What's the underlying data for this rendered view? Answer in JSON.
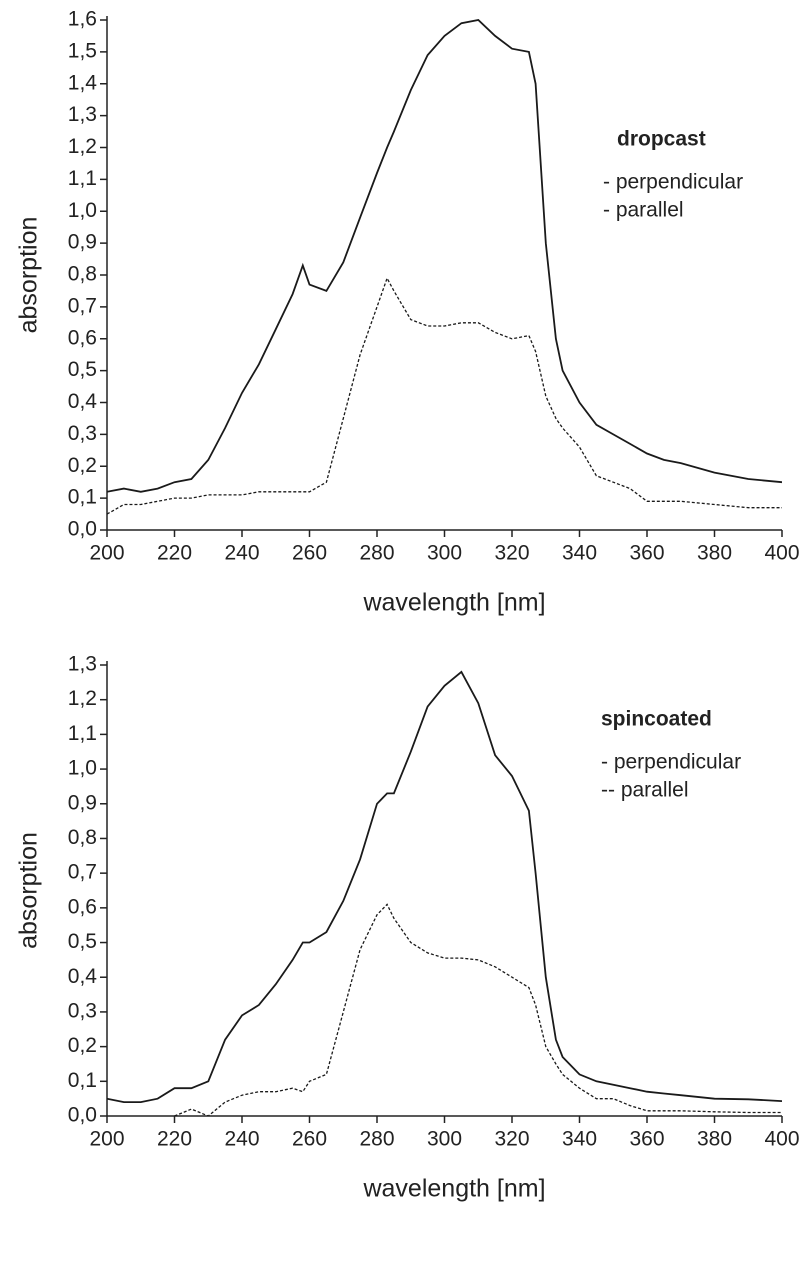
{
  "chart_data": [
    {
      "type": "line",
      "legend_title": "dropcast",
      "xlabel": "wavelength [nm]",
      "ylabel": "absorption",
      "x": [
        200,
        205,
        210,
        215,
        220,
        225,
        230,
        235,
        240,
        245,
        250,
        255,
        258,
        260,
        265,
        270,
        275,
        280,
        283,
        285,
        290,
        295,
        300,
        305,
        310,
        315,
        320,
        325,
        327,
        330,
        333,
        335,
        340,
        345,
        350,
        355,
        360,
        365,
        370,
        380,
        390,
        400
      ],
      "series": [
        {
          "name": "- perpendicular",
          "color": "#1a1a1a",
          "style": "solid",
          "values": [
            0.12,
            0.13,
            0.12,
            0.13,
            0.15,
            0.16,
            0.22,
            0.32,
            0.43,
            0.52,
            0.63,
            0.74,
            0.83,
            0.77,
            0.75,
            0.84,
            0.98,
            1.12,
            1.2,
            1.25,
            1.38,
            1.49,
            1.55,
            1.59,
            1.6,
            1.55,
            1.51,
            1.5,
            1.4,
            0.9,
            0.6,
            0.5,
            0.4,
            0.33,
            0.3,
            0.27,
            0.24,
            0.22,
            0.21,
            0.18,
            0.16,
            0.15
          ]
        },
        {
          "name": "- parallel",
          "color": "#1a1a1a",
          "style": "dashed",
          "values": [
            0.05,
            0.08,
            0.08,
            0.09,
            0.1,
            0.1,
            0.11,
            0.11,
            0.11,
            0.12,
            0.12,
            0.12,
            0.12,
            0.12,
            0.15,
            0.35,
            0.55,
            0.7,
            0.79,
            0.75,
            0.66,
            0.64,
            0.64,
            0.65,
            0.65,
            0.62,
            0.6,
            0.61,
            0.56,
            0.42,
            0.35,
            0.32,
            0.26,
            0.17,
            0.15,
            0.13,
            0.09,
            0.09,
            0.09,
            0.08,
            0.07,
            0.07
          ]
        }
      ],
      "xlim": [
        200,
        400
      ],
      "xticks": [
        200,
        220,
        240,
        260,
        280,
        300,
        320,
        340,
        360,
        380,
        400
      ],
      "ylim": [
        0,
        1.6
      ],
      "yticks": [
        {
          "value": 0,
          "label": "0,0"
        },
        {
          "value": 0.1,
          "label": "0,1"
        },
        {
          "value": 0.2,
          "label": "0,2"
        },
        {
          "value": 0.3,
          "label": "0,3"
        },
        {
          "value": 0.4,
          "label": "0,4"
        },
        {
          "value": 0.5,
          "label": "0,5"
        },
        {
          "value": 0.6,
          "label": "0,6"
        },
        {
          "value": 0.7,
          "label": "0,7"
        },
        {
          "value": 0.8,
          "label": "0,8"
        },
        {
          "value": 0.9,
          "label": "0,9"
        },
        {
          "value": 1.0,
          "label": "1,0"
        },
        {
          "value": 1.1,
          "label": "1,1"
        },
        {
          "value": 1.2,
          "label": "1,2"
        },
        {
          "value": 1.3,
          "label": "1,3"
        },
        {
          "value": 1.4,
          "label": "1,4"
        },
        {
          "value": 1.5,
          "label": "1,5"
        },
        {
          "value": 1.6,
          "label": "1,6"
        }
      ],
      "grid": false
    },
    {
      "type": "line",
      "legend_title": "spincoated",
      "xlabel": "wavelength [nm]",
      "ylabel": "absorption",
      "x": [
        200,
        205,
        210,
        215,
        220,
        225,
        230,
        235,
        240,
        245,
        250,
        255,
        258,
        260,
        265,
        270,
        275,
        280,
        283,
        285,
        290,
        295,
        300,
        305,
        310,
        315,
        320,
        325,
        327,
        330,
        333,
        335,
        340,
        345,
        350,
        355,
        360,
        365,
        370,
        380,
        390,
        400
      ],
      "series": [
        {
          "name": "- perpendicular",
          "color": "#1a1a1a",
          "style": "solid",
          "values": [
            0.05,
            0.04,
            0.04,
            0.05,
            0.08,
            0.08,
            0.1,
            0.22,
            0.29,
            0.32,
            0.38,
            0.45,
            0.5,
            0.5,
            0.53,
            0.62,
            0.74,
            0.9,
            0.93,
            0.93,
            1.05,
            1.18,
            1.24,
            1.28,
            1.19,
            1.04,
            0.98,
            0.88,
            0.7,
            0.4,
            0.22,
            0.17,
            0.12,
            0.1,
            0.09,
            0.08,
            0.07,
            0.065,
            0.06,
            0.05,
            0.048,
            0.043
          ]
        },
        {
          "name": "-- parallel",
          "color": "#1a1a1a",
          "style": "dashed",
          "values": [
            null,
            null,
            null,
            null,
            0.0,
            0.02,
            0.0,
            0.04,
            0.06,
            0.07,
            0.07,
            0.08,
            0.07,
            0.1,
            0.12,
            0.3,
            0.48,
            0.58,
            0.61,
            0.57,
            0.5,
            0.47,
            0.455,
            0.455,
            0.45,
            0.43,
            0.4,
            0.37,
            0.32,
            0.2,
            0.15,
            0.12,
            0.08,
            0.05,
            0.05,
            0.03,
            0.015,
            0.015,
            0.015,
            0.012,
            0.01,
            0.01
          ]
        }
      ],
      "xlim": [
        200,
        400
      ],
      "xticks": [
        200,
        220,
        240,
        260,
        280,
        300,
        320,
        340,
        360,
        380,
        400
      ],
      "ylim": [
        0,
        1.3
      ],
      "yticks": [
        {
          "value": 0,
          "label": "0,0"
        },
        {
          "value": 0.1,
          "label": "0,1"
        },
        {
          "value": 0.2,
          "label": "0,2"
        },
        {
          "value": 0.3,
          "label": "0,3"
        },
        {
          "value": 0.4,
          "label": "0,4"
        },
        {
          "value": 0.5,
          "label": "0,5"
        },
        {
          "value": 0.6,
          "label": "0,6"
        },
        {
          "value": 0.7,
          "label": "0,7"
        },
        {
          "value": 0.8,
          "label": "0,8"
        },
        {
          "value": 0.9,
          "label": "0,9"
        },
        {
          "value": 1.0,
          "label": "1,0"
        },
        {
          "value": 1.1,
          "label": "1,1"
        },
        {
          "value": 1.2,
          "label": "1,2"
        },
        {
          "value": 1.3,
          "label": "1,3"
        }
      ],
      "grid": false
    }
  ]
}
